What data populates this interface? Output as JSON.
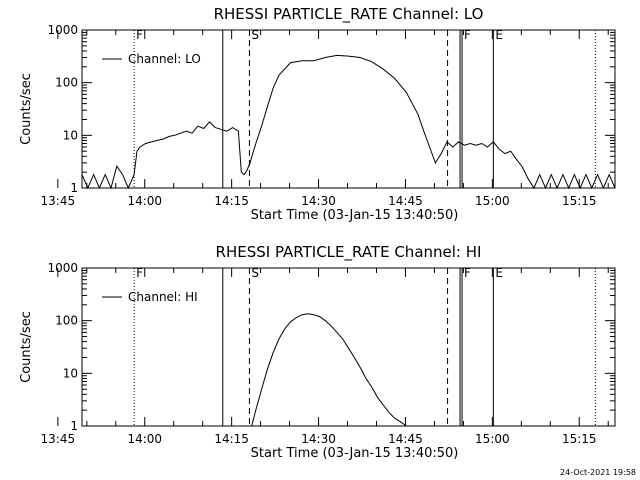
{
  "chart_data": [
    {
      "type": "line",
      "title": "RHESSI PARTICLE_RATE Channel: LO",
      "xlabel": "Start Time (03-Jan-15 13:40:50)",
      "ylabel": "Counts/sec",
      "yscale": "log",
      "ylim": [
        1,
        1000
      ],
      "y_ticks": [
        "1",
        "10",
        "100",
        "1000"
      ],
      "x_ticks": [
        "13:45",
        "14:00",
        "14:15",
        "14:30",
        "14:45",
        "15:00",
        "15:15"
      ],
      "x_tick_minutes": [
        -4.17,
        10.83,
        25.83,
        40.83,
        55.83,
        70.83,
        85.83
      ],
      "xlim": [
        0,
        92
      ],
      "legend": "Channel: LO",
      "legend_position": "top-left",
      "markers": [
        {
          "label": "F",
          "minute": 9.0,
          "style": "dotted"
        },
        {
          "label": "",
          "minute": 24.3,
          "style": "solid"
        },
        {
          "label": "S",
          "minute": 28.9,
          "style": "dashed"
        },
        {
          "label": "",
          "minute": 63.1,
          "style": "dashed"
        },
        {
          "label": "F",
          "minute": 65.6,
          "style": "solid-thick"
        },
        {
          "label": "E",
          "minute": 71.0,
          "style": "solid"
        },
        {
          "label": "",
          "minute": 88.6,
          "style": "dotted"
        }
      ],
      "series": [
        {
          "name": "Channel: LO",
          "x": [
            0,
            1,
            2,
            3,
            4,
            5,
            6,
            7,
            8,
            9,
            9.5,
            10,
            11,
            12,
            13,
            14,
            15,
            16,
            17,
            18,
            19,
            20,
            21,
            22,
            23,
            24,
            25,
            26,
            27,
            27.5,
            28,
            28.5,
            29,
            30,
            31,
            32,
            33,
            34,
            36,
            38,
            40,
            42,
            44,
            46,
            48,
            50,
            52,
            54,
            56,
            58,
            59,
            60,
            61,
            62,
            63,
            64,
            65,
            66,
            67,
            68,
            69,
            70,
            71,
            72,
            73,
            74,
            75,
            76,
            77,
            78,
            79,
            80,
            81,
            82,
            83,
            84,
            85,
            86,
            87,
            88,
            89,
            90,
            91,
            92
          ],
          "y": [
            1.8,
            1.0,
            1.8,
            1.0,
            1.8,
            1.0,
            2.6,
            1.8,
            1.0,
            1.8,
            5.0,
            6.0,
            7.0,
            7.5,
            8.0,
            8.5,
            9.5,
            10.0,
            11.0,
            12.0,
            11.0,
            15.0,
            13.5,
            18.0,
            14.0,
            13.0,
            12.0,
            14.0,
            12.0,
            2.0,
            1.8,
            2.2,
            3.0,
            7.0,
            15.0,
            35.0,
            80.0,
            140.0,
            240.0,
            260.0,
            260.0,
            300.0,
            330.0,
            320.0,
            300.0,
            250.0,
            180.0,
            120.0,
            65.0,
            25.0,
            12.0,
            6.0,
            3.0,
            4.5,
            7.5,
            6.0,
            7.5,
            6.5,
            7.0,
            6.5,
            7.0,
            6.0,
            7.5,
            5.5,
            4.5,
            5.0,
            3.5,
            2.5,
            1.5,
            1.0,
            1.8,
            1.0,
            1.8,
            1.0,
            1.8,
            1.0,
            1.8,
            1.0,
            1.8,
            1.0,
            1.8,
            1.0,
            1.8,
            1.0
          ]
        }
      ]
    },
    {
      "type": "line",
      "title": "RHESSI PARTICLE_RATE Channel: HI",
      "xlabel": "Start Time (03-Jan-15 13:40:50)",
      "ylabel": "Counts/sec",
      "yscale": "log",
      "ylim": [
        1,
        1000
      ],
      "y_ticks": [
        "1",
        "10",
        "100",
        "1000"
      ],
      "x_ticks": [
        "13:45",
        "14:00",
        "14:15",
        "14:30",
        "14:45",
        "15:00",
        "15:15"
      ],
      "x_tick_minutes": [
        -4.17,
        10.83,
        25.83,
        40.83,
        55.83,
        70.83,
        85.83
      ],
      "xlim": [
        0,
        92
      ],
      "legend": "Channel: HI",
      "legend_position": "top-left",
      "markers": [
        {
          "label": "F",
          "minute": 9.0,
          "style": "dotted"
        },
        {
          "label": "",
          "minute": 24.3,
          "style": "solid"
        },
        {
          "label": "S",
          "minute": 28.9,
          "style": "dashed"
        },
        {
          "label": "",
          "minute": 63.1,
          "style": "dashed"
        },
        {
          "label": "F",
          "minute": 65.6,
          "style": "solid-thick"
        },
        {
          "label": "E",
          "minute": 71.0,
          "style": "solid"
        },
        {
          "label": "",
          "minute": 88.6,
          "style": "dotted"
        }
      ],
      "series": [
        {
          "name": "Channel: HI",
          "x": [
            29.3,
            30,
            31,
            32,
            33,
            34,
            35,
            36,
            37,
            38,
            39,
            40,
            41,
            42,
            43,
            44,
            45,
            46,
            47,
            48,
            49,
            50,
            51,
            52,
            53,
            54,
            55,
            56
          ],
          "y": [
            1.0,
            2.0,
            5.0,
            12.0,
            25.0,
            45.0,
            70.0,
            95.0,
            115.0,
            130.0,
            135.0,
            130.0,
            120.0,
            100.0,
            80.0,
            60.0,
            45.0,
            30.0,
            20.0,
            13.0,
            8.0,
            5.5,
            3.5,
            2.5,
            1.8,
            1.4,
            1.2,
            1.0
          ]
        }
      ]
    }
  ],
  "footer": {
    "timestamp": "24-Oct-2021 19:58"
  }
}
